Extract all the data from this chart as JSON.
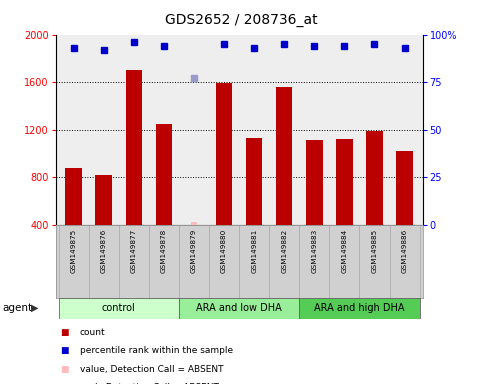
{
  "title": "GDS2652 / 208736_at",
  "samples": [
    "GSM149875",
    "GSM149876",
    "GSM149877",
    "GSM149878",
    "GSM149879",
    "GSM149880",
    "GSM149881",
    "GSM149882",
    "GSM149883",
    "GSM149884",
    "GSM149885",
    "GSM149886"
  ],
  "bar_values": [
    880,
    820,
    1700,
    1250,
    null,
    1590,
    1130,
    1560,
    1110,
    1120,
    1190,
    1020
  ],
  "absent_bar_value": 420,
  "absent_bar_index": 4,
  "percentile_values": [
    93,
    92,
    96,
    94,
    null,
    95,
    93,
    95,
    94,
    94,
    95,
    93
  ],
  "absent_percentile_value": 77,
  "absent_percentile_index": 4,
  "bar_color": "#bb0000",
  "absent_bar_color": "#ffbbbb",
  "percentile_color": "#0000cc",
  "absent_percentile_color": "#9999cc",
  "ylim_left": [
    400,
    2000
  ],
  "ylim_right": [
    0,
    100
  ],
  "yticks_left": [
    400,
    800,
    1200,
    1600,
    2000
  ],
  "yticks_right": [
    0,
    25,
    50,
    75,
    100
  ],
  "groups": [
    {
      "label": "control",
      "start": 0,
      "end": 3,
      "color": "#ccffcc"
    },
    {
      "label": "ARA and low DHA",
      "start": 4,
      "end": 7,
      "color": "#99ee99"
    },
    {
      "label": "ARA and high DHA",
      "start": 8,
      "end": 11,
      "color": "#55cc55"
    }
  ],
  "legend_items": [
    {
      "label": "count",
      "color": "#bb0000"
    },
    {
      "label": "percentile rank within the sample",
      "color": "#0000cc"
    },
    {
      "label": "value, Detection Call = ABSENT",
      "color": "#ffbbbb"
    },
    {
      "label": "rank, Detection Call = ABSENT",
      "color": "#9999cc"
    }
  ],
  "sample_box_color": "#d0d0d0",
  "background_color": "#ffffff",
  "plot_bg_color": "#eeeeee"
}
